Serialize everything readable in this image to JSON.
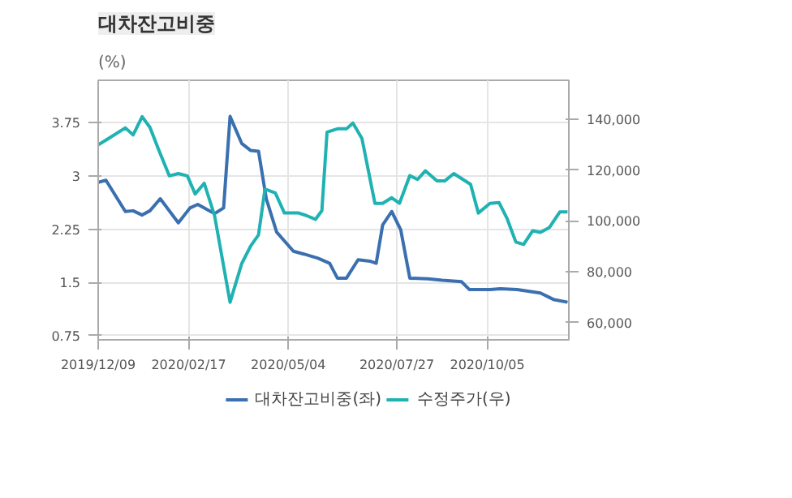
{
  "chart_data": {
    "type": "line",
    "title": "대차잔고비중",
    "ylabel": "(%)",
    "xlim": [
      "2019-12-09",
      "2020-12-07"
    ],
    "xticks": [
      {
        "value": "2019-12-09",
        "label": "2019/12/09"
      },
      {
        "value": "2020-02-17",
        "label": "2020/02/17"
      },
      {
        "value": "2020-05-04",
        "label": "2020/05/04"
      },
      {
        "value": "2020-07-27",
        "label": "2020/07/27"
      },
      {
        "value": "2020-10-05",
        "label": "2020/10/05"
      }
    ],
    "ylim": [
      0.69,
      4.35
    ],
    "yticks": [
      0.75,
      1.5,
      2.25,
      3,
      3.75
    ],
    "y2lim": [
      53200,
      155300
    ],
    "y2ticks": [
      {
        "value": 60000,
        "label": "60,000"
      },
      {
        "value": 80000,
        "label": "80,000"
      },
      {
        "value": 100000,
        "label": "100,000"
      },
      {
        "value": 120000,
        "label": "120,000"
      },
      {
        "value": 140000,
        "label": "140,000"
      }
    ],
    "grid": true,
    "legend": "bottom",
    "marker": "none",
    "line_style": "solid",
    "series": [
      {
        "name": "대차잔고비중(좌)",
        "color": "#3a6fb0",
        "x": [
          "2019-12-09",
          "2019-12-15",
          "2019-12-30",
          "2020-01-05",
          "2020-01-12",
          "2020-01-18",
          "2020-01-26",
          "2020-02-09",
          "2020-02-18",
          "2020-02-24",
          "2020-03-08",
          "2020-03-15",
          "2020-03-20",
          "2020-03-29",
          "2020-04-05",
          "2020-04-11",
          "2020-04-17",
          "2020-04-25",
          "2020-05-08",
          "2020-05-16",
          "2020-05-27",
          "2020-06-05",
          "2020-06-11",
          "2020-06-18",
          "2020-06-27",
          "2020-07-06",
          "2020-07-11",
          "2020-07-16",
          "2020-07-23",
          "2020-07-30",
          "2020-08-06",
          "2020-08-20",
          "2020-08-31",
          "2020-09-15",
          "2020-09-21",
          "2020-10-07",
          "2020-10-15",
          "2020-10-28",
          "2020-11-15",
          "2020-11-25",
          "2020-12-06"
        ],
        "values": [
          2.91,
          2.94,
          2.5,
          2.51,
          2.45,
          2.51,
          2.68,
          2.34,
          2.55,
          2.6,
          2.47,
          2.55,
          3.84,
          3.46,
          3.36,
          3.35,
          2.68,
          2.21,
          1.94,
          1.9,
          1.84,
          1.77,
          1.56,
          1.56,
          1.82,
          1.8,
          1.77,
          2.31,
          2.5,
          2.24,
          1.56,
          1.55,
          1.53,
          1.51,
          1.4,
          1.4,
          1.41,
          1.4,
          1.35,
          1.26,
          1.22
        ]
      },
      {
        "name": "수정주가(우)",
        "color": "#20b2b2",
        "axis": "y2",
        "x": [
          "2019-12-09",
          "2019-12-17",
          "2019-12-30",
          "2020-01-05",
          "2020-01-12",
          "2020-01-18",
          "2020-01-25",
          "2020-02-02",
          "2020-02-09",
          "2020-02-16",
          "2020-02-22",
          "2020-02-29",
          "2020-03-08",
          "2020-03-20",
          "2020-03-29",
          "2020-04-05",
          "2020-04-11",
          "2020-04-16",
          "2020-04-24",
          "2020-05-01",
          "2020-05-12",
          "2020-05-18",
          "2020-05-25",
          "2020-05-30",
          "2020-06-03",
          "2020-06-11",
          "2020-06-18",
          "2020-06-23",
          "2020-06-30",
          "2020-07-10",
          "2020-07-16",
          "2020-07-23",
          "2020-07-29",
          "2020-08-06",
          "2020-08-12",
          "2020-08-18",
          "2020-08-27",
          "2020-09-02",
          "2020-09-09",
          "2020-09-22",
          "2020-09-28",
          "2020-10-07",
          "2020-10-14",
          "2020-10-20",
          "2020-10-27",
          "2020-11-02",
          "2020-11-09",
          "2020-11-15",
          "2020-11-22",
          "2020-11-30",
          "2020-12-06"
        ],
        "values": [
          129900,
          132400,
          136600,
          133800,
          141000,
          136800,
          127700,
          117700,
          118600,
          117700,
          110600,
          114800,
          102100,
          68000,
          83200,
          90200,
          94500,
          112500,
          111000,
          103100,
          103100,
          102100,
          100600,
          104000,
          134900,
          136200,
          136200,
          138500,
          132400,
          106900,
          106900,
          109100,
          106900,
          117800,
          116300,
          119700,
          115700,
          115700,
          118600,
          114400,
          103100,
          106900,
          107200,
          101200,
          91700,
          90700,
          96100,
          95500,
          97400,
          103500,
          103500
        ]
      }
    ]
  }
}
